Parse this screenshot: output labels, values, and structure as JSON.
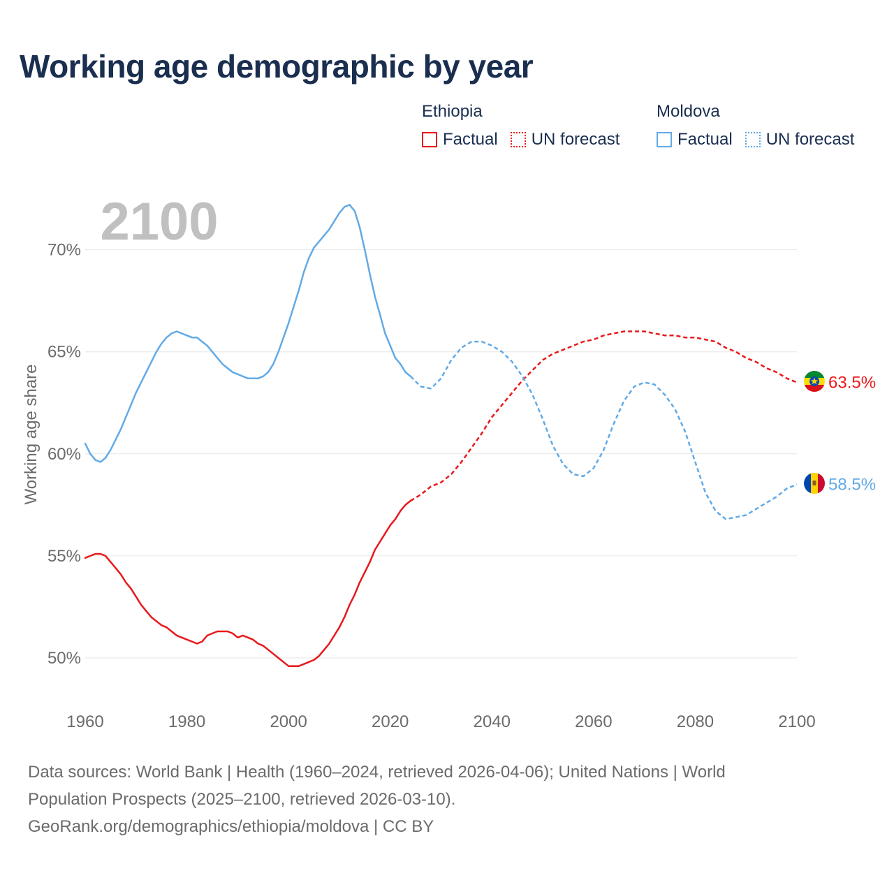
{
  "header": {
    "title": "Working age demographic by year"
  },
  "legend": {
    "groups": [
      {
        "name": "Ethiopia",
        "color": "#e8191b",
        "items": [
          {
            "label": "Factual",
            "style": "solid"
          },
          {
            "label": "UN forecast",
            "style": "dotted"
          }
        ]
      },
      {
        "name": "Moldova",
        "color": "#62aae6",
        "items": [
          {
            "label": "Factual",
            "style": "solid"
          },
          {
            "label": "UN forecast",
            "style": "dotted"
          }
        ]
      }
    ]
  },
  "chart_data": {
    "type": "line",
    "title": "Working age demographic by year",
    "watermark_year": "2100",
    "xlabel": "",
    "ylabel": "Working age share",
    "xlim": [
      1960,
      2100
    ],
    "ylim": [
      48,
      73
    ],
    "x_ticks": [
      1960,
      1980,
      2000,
      2020,
      2040,
      2060,
      2080,
      2100
    ],
    "x_tick_labels": [
      "1960",
      "1980",
      "2000",
      "2020",
      "2040",
      "2060",
      "2080",
      "2100"
    ],
    "y_ticks": [
      50,
      55,
      60,
      65,
      70
    ],
    "y_tick_labels": [
      "50%",
      "55%",
      "60%",
      "65%",
      "70%"
    ],
    "grid": true,
    "series": [
      {
        "name": "Ethiopia",
        "color": "#e8191b",
        "end_label": "63.5%",
        "factual": {
          "x": [
            1960,
            1961,
            1962,
            1963,
            1964,
            1965,
            1966,
            1967,
            1968,
            1969,
            1970,
            1971,
            1972,
            1973,
            1974,
            1975,
            1976,
            1977,
            1978,
            1979,
            1980,
            1981,
            1982,
            1983,
            1984,
            1985,
            1986,
            1987,
            1988,
            1989,
            1990,
            1991,
            1992,
            1993,
            1994,
            1995,
            1996,
            1997,
            1998,
            1999,
            2000,
            2001,
            2002,
            2003,
            2004,
            2005,
            2006,
            2007,
            2008,
            2009,
            2010,
            2011,
            2012,
            2013,
            2014,
            2015,
            2016,
            2017,
            2018,
            2019,
            2020,
            2021,
            2022,
            2023,
            2024
          ],
          "y": [
            54.9,
            55.0,
            55.1,
            55.1,
            55.0,
            54.7,
            54.4,
            54.1,
            53.7,
            53.4,
            53.0,
            52.6,
            52.3,
            52.0,
            51.8,
            51.6,
            51.5,
            51.3,
            51.1,
            51.0,
            50.9,
            50.8,
            50.7,
            50.8,
            51.1,
            51.2,
            51.3,
            51.3,
            51.3,
            51.2,
            51.0,
            51.1,
            51.0,
            50.9,
            50.7,
            50.6,
            50.4,
            50.2,
            50.0,
            49.8,
            49.6,
            49.6,
            49.6,
            49.7,
            49.8,
            49.9,
            50.1,
            50.4,
            50.7,
            51.1,
            51.5,
            52.0,
            52.6,
            53.1,
            53.7,
            54.2,
            54.7,
            55.3,
            55.7,
            56.1,
            56.5,
            56.8,
            57.2,
            57.5,
            57.7
          ]
        },
        "forecast": {
          "x": [
            2024,
            2026,
            2028,
            2030,
            2032,
            2034,
            2036,
            2038,
            2040,
            2042,
            2044,
            2046,
            2048,
            2050,
            2052,
            2054,
            2056,
            2058,
            2060,
            2062,
            2064,
            2066,
            2068,
            2070,
            2072,
            2074,
            2076,
            2078,
            2080,
            2082,
            2084,
            2086,
            2088,
            2090,
            2092,
            2094,
            2096,
            2098,
            2100
          ],
          "y": [
            57.7,
            58.0,
            58.4,
            58.6,
            59.0,
            59.6,
            60.3,
            61.0,
            61.8,
            62.4,
            63.0,
            63.6,
            64.1,
            64.6,
            64.9,
            65.1,
            65.3,
            65.5,
            65.6,
            65.8,
            65.9,
            66.0,
            66.0,
            66.0,
            65.9,
            65.8,
            65.8,
            65.7,
            65.7,
            65.6,
            65.5,
            65.2,
            65.0,
            64.7,
            64.5,
            64.2,
            64.0,
            63.7,
            63.5
          ]
        }
      },
      {
        "name": "Moldova",
        "color": "#62aae6",
        "end_label": "58.5%",
        "factual": {
          "x": [
            1960,
            1961,
            1962,
            1963,
            1964,
            1965,
            1966,
            1967,
            1968,
            1969,
            1970,
            1971,
            1972,
            1973,
            1974,
            1975,
            1976,
            1977,
            1978,
            1979,
            1980,
            1981,
            1982,
            1983,
            1984,
            1985,
            1986,
            1987,
            1988,
            1989,
            1990,
            1991,
            1992,
            1993,
            1994,
            1995,
            1996,
            1997,
            1998,
            1999,
            2000,
            2001,
            2002,
            2003,
            2004,
            2005,
            2006,
            2007,
            2008,
            2009,
            2010,
            2011,
            2012,
            2013,
            2014,
            2015,
            2016,
            2017,
            2018,
            2019,
            2020,
            2021,
            2022,
            2023,
            2024
          ],
          "y": [
            60.5,
            60.0,
            59.7,
            59.6,
            59.8,
            60.2,
            60.7,
            61.2,
            61.8,
            62.4,
            63.0,
            63.5,
            64.0,
            64.5,
            65.0,
            65.4,
            65.7,
            65.9,
            66.0,
            65.9,
            65.8,
            65.7,
            65.7,
            65.5,
            65.3,
            65.0,
            64.7,
            64.4,
            64.2,
            64.0,
            63.9,
            63.8,
            63.7,
            63.7,
            63.7,
            63.8,
            64.0,
            64.4,
            65.0,
            65.7,
            66.4,
            67.2,
            68.0,
            68.9,
            69.6,
            70.1,
            70.4,
            70.7,
            71.0,
            71.4,
            71.8,
            72.1,
            72.2,
            71.9,
            71.1,
            70.0,
            68.8,
            67.7,
            66.8,
            65.9,
            65.3,
            64.7,
            64.4,
            64.0,
            63.8
          ]
        },
        "forecast": {
          "x": [
            2024,
            2026,
            2028,
            2030,
            2032,
            2034,
            2036,
            2038,
            2040,
            2042,
            2044,
            2046,
            2048,
            2050,
            2052,
            2054,
            2056,
            2058,
            2060,
            2062,
            2064,
            2066,
            2068,
            2070,
            2072,
            2074,
            2076,
            2078,
            2080,
            2082,
            2084,
            2086,
            2088,
            2090,
            2092,
            2094,
            2096,
            2098,
            2100
          ],
          "y": [
            63.8,
            63.3,
            63.2,
            63.7,
            64.6,
            65.2,
            65.5,
            65.5,
            65.3,
            65.0,
            64.5,
            63.8,
            62.9,
            61.7,
            60.4,
            59.5,
            59.0,
            58.9,
            59.3,
            60.2,
            61.5,
            62.6,
            63.3,
            63.5,
            63.4,
            62.9,
            62.2,
            61.1,
            59.6,
            58.1,
            57.2,
            56.8,
            56.9,
            57.0,
            57.3,
            57.6,
            57.9,
            58.3,
            58.5
          ]
        }
      }
    ]
  },
  "footer": {
    "line1": "Data sources: World Bank | Health (1960–2024, retrieved 2026-04-06); United Nations | World",
    "line2": "Population Prospects (2025–2100, retrieved 2026-03-10).",
    "line3": "GeoRank.org/demographics/ethiopia/moldova | CC BY"
  }
}
